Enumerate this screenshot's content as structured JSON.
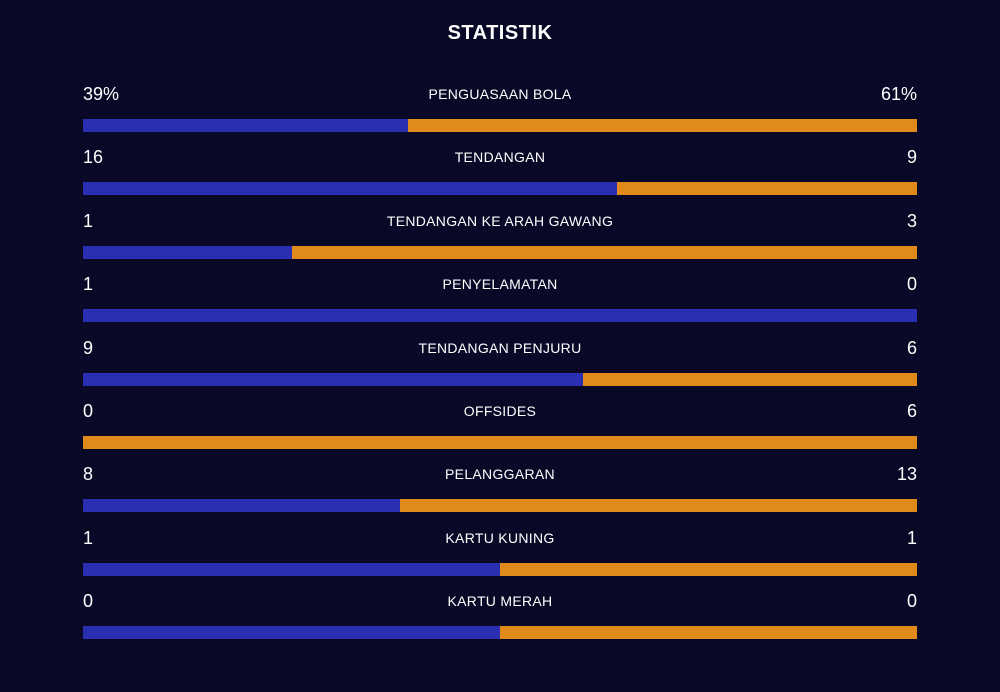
{
  "title": "STATISTIK",
  "colors": {
    "home": "#2a2fb2",
    "away": "#e08a1b",
    "background": "#090826"
  },
  "stats": [
    {
      "label": "PENGUASAAN BOLA",
      "home": "39%",
      "away": "61%",
      "home_share": 0.39
    },
    {
      "label": "TENDANGAN",
      "home": "16",
      "away": "9",
      "home_share": 0.64
    },
    {
      "label": "TENDANGAN KE ARAH GAWANG",
      "home": "1",
      "away": "3",
      "home_share": 0.25
    },
    {
      "label": "PENYELAMATAN",
      "home": "1",
      "away": "0",
      "home_share": 1.0
    },
    {
      "label": "TENDANGAN PENJURU",
      "home": "9",
      "away": "6",
      "home_share": 0.6
    },
    {
      "label": "OFFSIDES",
      "home": "0",
      "away": "6",
      "home_share": 0.0
    },
    {
      "label": "PELANGGARAN",
      "home": "8",
      "away": "13",
      "home_share": 0.38
    },
    {
      "label": "KARTU KUNING",
      "home": "1",
      "away": "1",
      "home_share": 0.5
    },
    {
      "label": "KARTU MERAH",
      "home": "0",
      "away": "0",
      "home_share": 0.5
    }
  ]
}
